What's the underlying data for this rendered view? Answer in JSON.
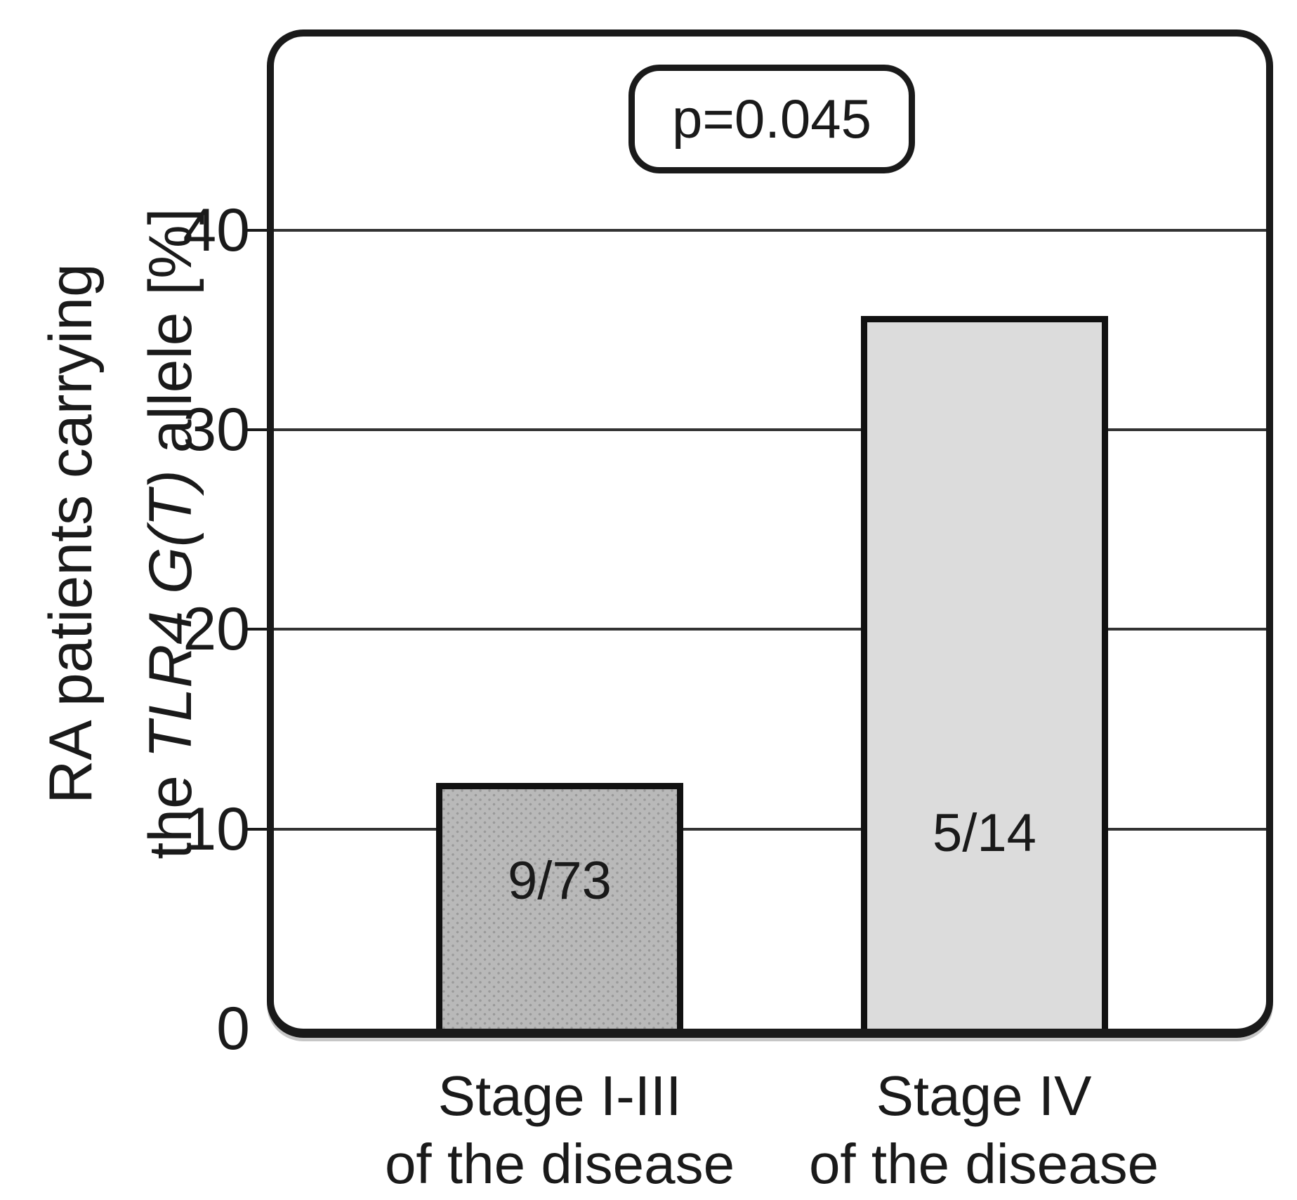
{
  "figure": {
    "background": "#ffffff",
    "ink_color": "#1a1a1a"
  },
  "chart_data": {
    "type": "bar",
    "title": "",
    "xlabel": "",
    "ylabel_lines": [
      [
        {
          "text": "RA patients carrying",
          "italic": false
        }
      ],
      [
        {
          "text": "the ",
          "italic": false
        },
        {
          "text": "TLR4 G(T)",
          "italic": true
        },
        {
          "text": " allele [%]",
          "italic": false
        }
      ]
    ],
    "annotation": "p=0.045",
    "yticks": [
      0,
      10,
      20,
      30,
      40
    ],
    "ylim": [
      0,
      49.7
    ],
    "grid": true,
    "legend": "none",
    "bars": [
      {
        "category_lines": [
          "Stage I-III",
          "of the disease"
        ],
        "label": "9/73",
        "value_pct": 12.3,
        "fill": "#b9b9b9",
        "pattern": "dotted"
      },
      {
        "category_lines": [
          "Stage IV",
          "of the disease"
        ],
        "label": "5/14",
        "value_pct": 35.7,
        "fill": "#dcdcdc",
        "pattern": "plain"
      }
    ],
    "bar_centers_frac": [
      0.288,
      0.716
    ],
    "bar_width_frac": 0.249,
    "colors": {
      "frame": "#1a1a1a",
      "gridline": "#333333",
      "bar1_fill": "#b9b9b9",
      "bar1_dot": "#9a9a9a",
      "bar2_fill": "#dcdcdc"
    }
  }
}
